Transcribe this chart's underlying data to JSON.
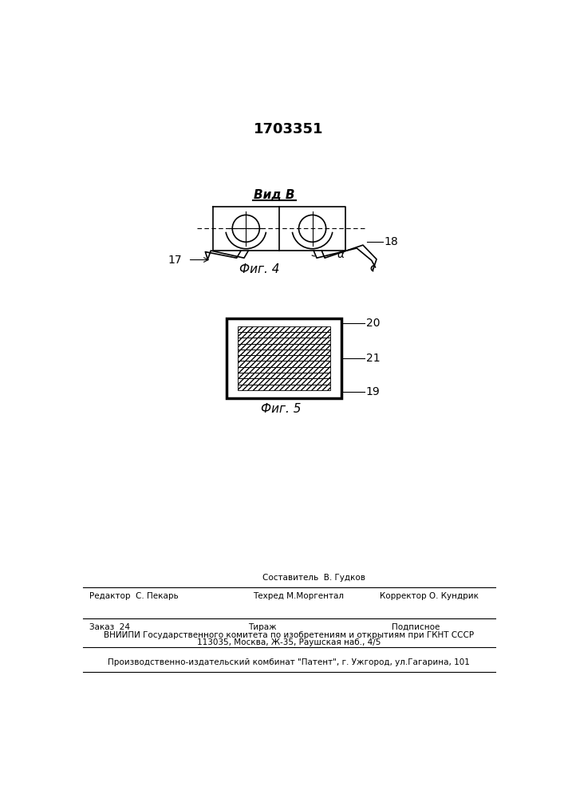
{
  "patent_number": "1703351",
  "fig4_label": "Вид В",
  "fig4_caption": "Фиг. 4",
  "fig5_caption": "Фиг. 5",
  "label_17": "17",
  "label_18": "18",
  "label_alpha": "α",
  "label_19": "19",
  "label_20": "20",
  "label_21": "21",
  "bg_color": "#ffffff",
  "line_color": "#000000",
  "footer_line1_left": "Редактор  С. Пекарь",
  "footer_line1_mid1": "Составитель  В. Гудков",
  "footer_line1_mid2": "Техред М.Моргентал",
  "footer_line1_right": "Корректор О. Кундрик",
  "footer_line2_left": "Заказ  24",
  "footer_line2_mid": "Тираж",
  "footer_line2_right": "Подписное",
  "footer_line3": "ВНИИПИ Государственного комитета по изобретениям и открытиям при ГКНТ СССР",
  "footer_line4": "113035, Москва, Ж-35, Раушская наб., 4/5",
  "footer_line5": "Производственно-издательский комбинат \"Патент\", г. Ужгород, ул.Гагарина, 101"
}
